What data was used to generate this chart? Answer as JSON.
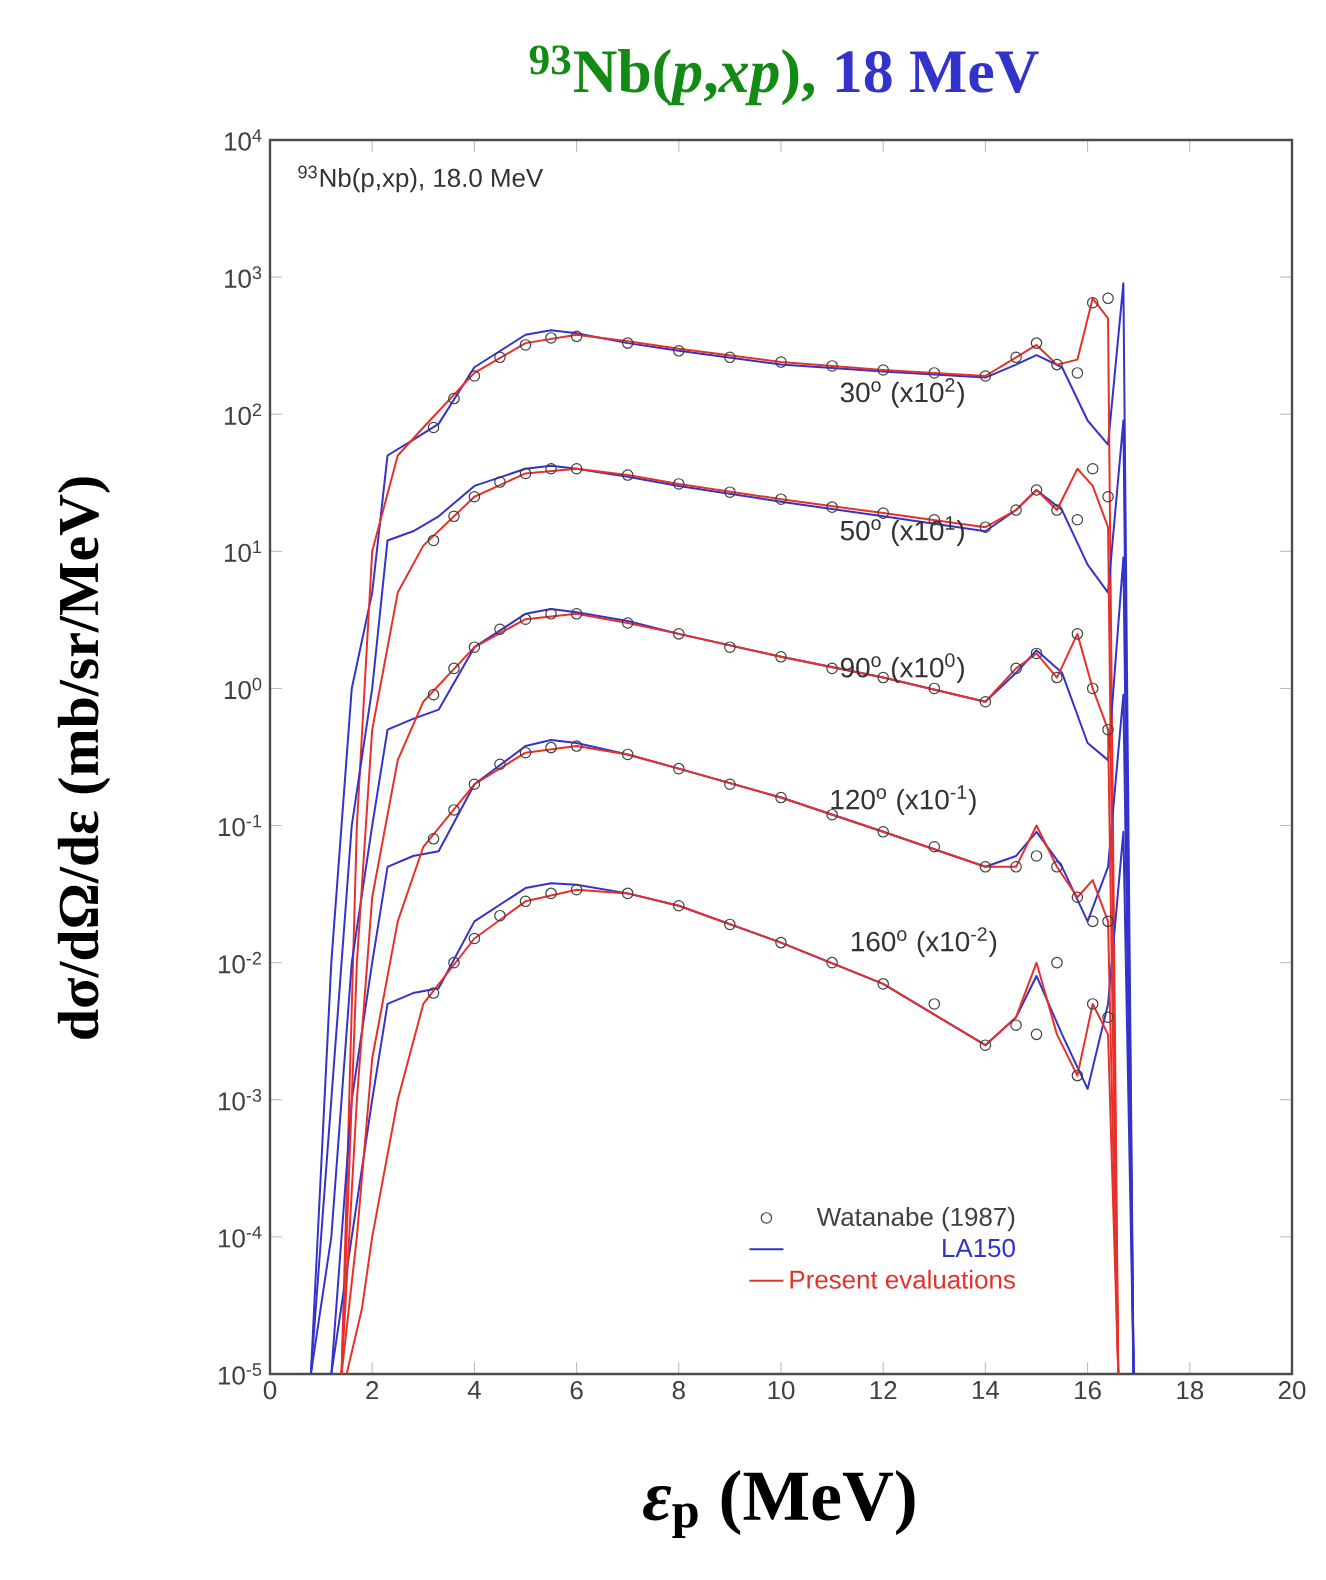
{
  "chart_data": {
    "type": "line",
    "title": "$^{93}$Nb(*p*,*xp*),",
    "subtitle": "18 MeV",
    "xlabel": "*ε*$_{p}$ (MeV)",
    "ylabel": "dσ/dΩ/dε (mb/sr/MeV)",
    "log": "y",
    "xlim": [
      0,
      20
    ],
    "ylim": [
      1e-05,
      10000
    ],
    "xticks": [
      0,
      2,
      4,
      6,
      8,
      10,
      12,
      14,
      16,
      18,
      20
    ],
    "yticks": [
      {
        "value": 1e-05,
        "label": "10$^{-5}$"
      },
      {
        "value": 0.0001,
        "label": "10$^{-4}$"
      },
      {
        "value": 0.001,
        "label": "10$^{-3}$"
      },
      {
        "value": 0.01,
        "label": "10$^{-2}$"
      },
      {
        "value": 0.1,
        "label": "10$^{-1}$"
      },
      {
        "value": 1,
        "label": "10$^{0}$"
      },
      {
        "value": 10,
        "label": "10$^{1}$"
      },
      {
        "value": 100,
        "label": "10$^{2}$"
      },
      {
        "value": 1000,
        "label": "10$^{3}$"
      },
      {
        "value": 10000,
        "label": "10$^{4}$"
      }
    ],
    "legend": "bottom right",
    "annotations": [
      "$^{93}$Nb(p,xp), 18.0 MeV",
      "30$^{o}$ (x10$^{2}$)",
      "50$^{o}$ (x10$^{1}$)",
      "90$^{o}$ (x10$^{0}$)",
      "120$^{o}$ (x10$^{-1}$)",
      "160$^{o}$ (x10$^{-2}$)"
    ],
    "series": [
      {
        "name": "Watanabe (1987)",
        "type": "scatter",
        "marker": "circle",
        "color": "#404040",
        "x": [
          3.2,
          3.6,
          4,
          4.5,
          5,
          5.5,
          6,
          7,
          8,
          9,
          10,
          11,
          12,
          13,
          14,
          14.6,
          15,
          15.4,
          15.8,
          16.1,
          16.4
        ],
        "values": [
          80,
          130,
          190,
          260,
          320,
          360,
          370,
          330,
          290,
          260,
          240,
          225,
          210,
          200,
          190,
          260,
          330,
          230,
          200,
          650,
          700
        ]
      },
      {
        "name": "LA150",
        "color": "#3333cc",
        "x": [
          0.8,
          1.2,
          1.6,
          2.0,
          2.3,
          2.8,
          3.3,
          4,
          5,
          5.5,
          6,
          7,
          8,
          10,
          12,
          14,
          14.6,
          15,
          15.5,
          16,
          16.4,
          16.7,
          16.9
        ],
        "values": [
          1e-05,
          0.01,
          1,
          5,
          50,
          65,
          85,
          220,
          380,
          410,
          390,
          330,
          290,
          230,
          205,
          185,
          230,
          270,
          220,
          90,
          60,
          900,
          1e-05
        ]
      },
      {
        "name": "Present evaluations",
        "color": "#e8302a",
        "x": [
          1.4,
          1.7,
          2.0,
          2.5,
          3,
          4,
          5,
          6,
          7,
          8,
          10,
          12,
          14,
          14.6,
          15,
          15.4,
          15.8,
          16.1,
          16.4,
          16.6
        ],
        "values": [
          1e-05,
          0.1,
          10,
          50,
          80,
          200,
          330,
          380,
          340,
          300,
          240,
          210,
          190,
          260,
          320,
          230,
          250,
          700,
          500,
          1e-05
        ]
      },
      {
        "type": "scatter",
        "marker": "circle",
        "color": "#404040",
        "x": [
          3.2,
          3.6,
          4,
          4.5,
          5,
          5.5,
          6,
          7,
          8,
          9,
          10,
          11,
          12,
          13,
          14,
          14.6,
          15,
          15.4,
          15.8,
          16.1,
          16.4
        ],
        "values": [
          12,
          18,
          25,
          32,
          37,
          40,
          40,
          36,
          31,
          27,
          24,
          21,
          19,
          17,
          15,
          20,
          28,
          20,
          17,
          40,
          25
        ]
      },
      {
        "type": "scatter",
        "marker": "circle",
        "color": "#404040",
        "x": [
          3.2,
          3.6,
          4,
          4.5,
          5,
          5.5,
          6,
          7,
          8,
          9,
          10,
          11,
          12,
          13,
          14,
          14.6,
          15,
          15.4,
          15.8,
          16.1,
          16.4
        ],
        "values": [
          0.9,
          1.4,
          2.0,
          2.7,
          3.2,
          3.5,
          3.5,
          3.0,
          2.5,
          2.0,
          1.7,
          1.4,
          1.2,
          1.0,
          0.8,
          1.4,
          1.8,
          1.2,
          2.5,
          1.0,
          0.5
        ]
      },
      {
        "type": "scatter",
        "marker": "circle",
        "color": "#404040",
        "x": [
          3.2,
          3.6,
          4,
          4.5,
          5,
          5.5,
          6,
          7,
          8,
          9,
          10,
          11,
          12,
          13,
          14,
          14.6,
          15,
          15.4,
          15.8,
          16.1,
          16.4
        ],
        "values": [
          0.08,
          0.13,
          0.2,
          0.28,
          0.34,
          0.37,
          0.38,
          0.33,
          0.26,
          0.2,
          0.16,
          0.12,
          0.09,
          0.07,
          0.05,
          0.05,
          0.06,
          0.05,
          0.03,
          0.02,
          0.02
        ]
      },
      {
        "type": "scatter",
        "marker": "circle",
        "color": "#404040",
        "x": [
          3.2,
          3.6,
          4,
          4.5,
          5,
          5.5,
          6,
          7,
          8,
          9,
          10,
          11,
          12,
          13,
          14,
          14.6,
          15,
          15.4,
          15.8,
          16.1,
          16.4
        ],
        "values": [
          0.006,
          0.01,
          0.015,
          0.022,
          0.028,
          0.032,
          0.034,
          0.032,
          0.026,
          0.019,
          0.014,
          0.01,
          0.007,
          0.005,
          0.0025,
          0.0035,
          0.003,
          0.01,
          0.0015,
          0.005,
          0.004
        ]
      },
      {
        "type": "line",
        "color": "#3333cc",
        "x": [
          0.8,
          1.2,
          1.6,
          2.0,
          2.3,
          2.8,
          3.3,
          4,
          5,
          5.5,
          6,
          7,
          8,
          10,
          12,
          14,
          14.6,
          15,
          15.5,
          16,
          16.4,
          16.7,
          16.9
        ],
        "values": [
          1e-05,
          0.001,
          0.1,
          1,
          12,
          14,
          18,
          30,
          40,
          42,
          40,
          35,
          30,
          23,
          18,
          14,
          20,
          28,
          20,
          8,
          5,
          90,
          1e-05
        ]
      },
      {
        "type": "line",
        "color": "#3333cc",
        "x": [
          0.8,
          1.2,
          1.6,
          2.0,
          2.3,
          2.8,
          3.3,
          4,
          5,
          5.5,
          6,
          7,
          8,
          10,
          12,
          14,
          14.6,
          15,
          15.5,
          16,
          16.4,
          16.7,
          16.9
        ],
        "values": [
          1e-05,
          0.0001,
          0.01,
          0.1,
          0.5,
          0.6,
          0.7,
          2.0,
          3.5,
          3.8,
          3.6,
          3.1,
          2.5,
          1.7,
          1.2,
          0.8,
          1.3,
          1.9,
          1.3,
          0.4,
          0.3,
          9,
          1e-05
        ]
      },
      {
        "type": "line",
        "color": "#3333cc",
        "x": [
          0.8,
          1.2,
          1.6,
          2.0,
          2.3,
          2.8,
          3.3,
          4,
          5,
          5.5,
          6,
          7,
          8,
          10,
          12,
          14,
          14.6,
          15,
          15.5,
          16,
          16.4,
          16.7,
          16.9
        ],
        "values": [
          1e-05,
          1e-05,
          0.001,
          0.01,
          0.05,
          0.06,
          0.065,
          0.2,
          0.38,
          0.42,
          0.4,
          0.33,
          0.26,
          0.16,
          0.09,
          0.05,
          0.06,
          0.09,
          0.05,
          0.02,
          0.05,
          0.9,
          1e-05
        ]
      },
      {
        "type": "line",
        "color": "#3333cc",
        "x": [
          0.8,
          1.2,
          1.6,
          2.0,
          2.3,
          2.8,
          3.3,
          4,
          5,
          5.5,
          6,
          7,
          8,
          10,
          12,
          14,
          14.6,
          15,
          15.5,
          16,
          16.4,
          16.7,
          16.9
        ],
        "values": [
          1e-05,
          1e-05,
          0.0001,
          0.001,
          0.005,
          0.006,
          0.0065,
          0.02,
          0.035,
          0.038,
          0.037,
          0.032,
          0.026,
          0.014,
          0.007,
          0.0025,
          0.004,
          0.008,
          0.003,
          0.0012,
          0.005,
          0.09,
          1e-05
        ]
      },
      {
        "type": "line",
        "color": "#e8302a",
        "x": [
          1.4,
          1.7,
          2.0,
          2.5,
          3,
          4,
          5,
          6,
          7,
          8,
          10,
          12,
          14,
          14.6,
          15,
          15.4,
          15.8,
          16.1,
          16.4,
          16.6
        ],
        "values": [
          1e-05,
          0.01,
          0.5,
          5,
          11,
          25,
          37,
          40,
          36,
          31,
          24,
          19,
          15,
          20,
          28,
          20,
          40,
          30,
          15,
          1e-05
        ]
      },
      {
        "type": "line",
        "color": "#e8302a",
        "x": [
          1.4,
          1.7,
          2.0,
          2.5,
          3,
          4,
          5,
          6,
          7,
          8,
          10,
          12,
          14,
          14.6,
          15,
          15.4,
          15.8,
          16.1,
          16.4,
          16.6
        ],
        "values": [
          1e-05,
          0.001,
          0.03,
          0.3,
          0.8,
          2.0,
          3.2,
          3.5,
          3.0,
          2.5,
          1.7,
          1.2,
          0.8,
          1.4,
          1.8,
          1.2,
          2.5,
          1.0,
          0.5,
          1e-05
        ]
      },
      {
        "type": "line",
        "color": "#e8302a",
        "x": [
          1.4,
          1.7,
          2.0,
          2.5,
          3,
          4,
          5,
          6,
          7,
          8,
          10,
          12,
          14,
          14.6,
          15,
          15.4,
          15.8,
          16.1,
          16.4,
          16.6
        ],
        "values": [
          1e-05,
          0.0001,
          0.002,
          0.02,
          0.07,
          0.2,
          0.34,
          0.38,
          0.33,
          0.26,
          0.16,
          0.09,
          0.05,
          0.05,
          0.1,
          0.05,
          0.03,
          0.04,
          0.02,
          1e-05
        ]
      },
      {
        "type": "line",
        "color": "#e8302a",
        "x": [
          1.5,
          1.8,
          2.0,
          2.5,
          3,
          4,
          5,
          6,
          7,
          8,
          10,
          12,
          14,
          14.6,
          15,
          15.4,
          15.8,
          16.1,
          16.4,
          16.6
        ],
        "values": [
          1e-05,
          3e-05,
          0.0001,
          0.001,
          0.005,
          0.015,
          0.028,
          0.034,
          0.032,
          0.026,
          0.014,
          0.007,
          0.0025,
          0.004,
          0.01,
          0.003,
          0.0015,
          0.005,
          0.003,
          1e-05
        ]
      }
    ]
  }
}
